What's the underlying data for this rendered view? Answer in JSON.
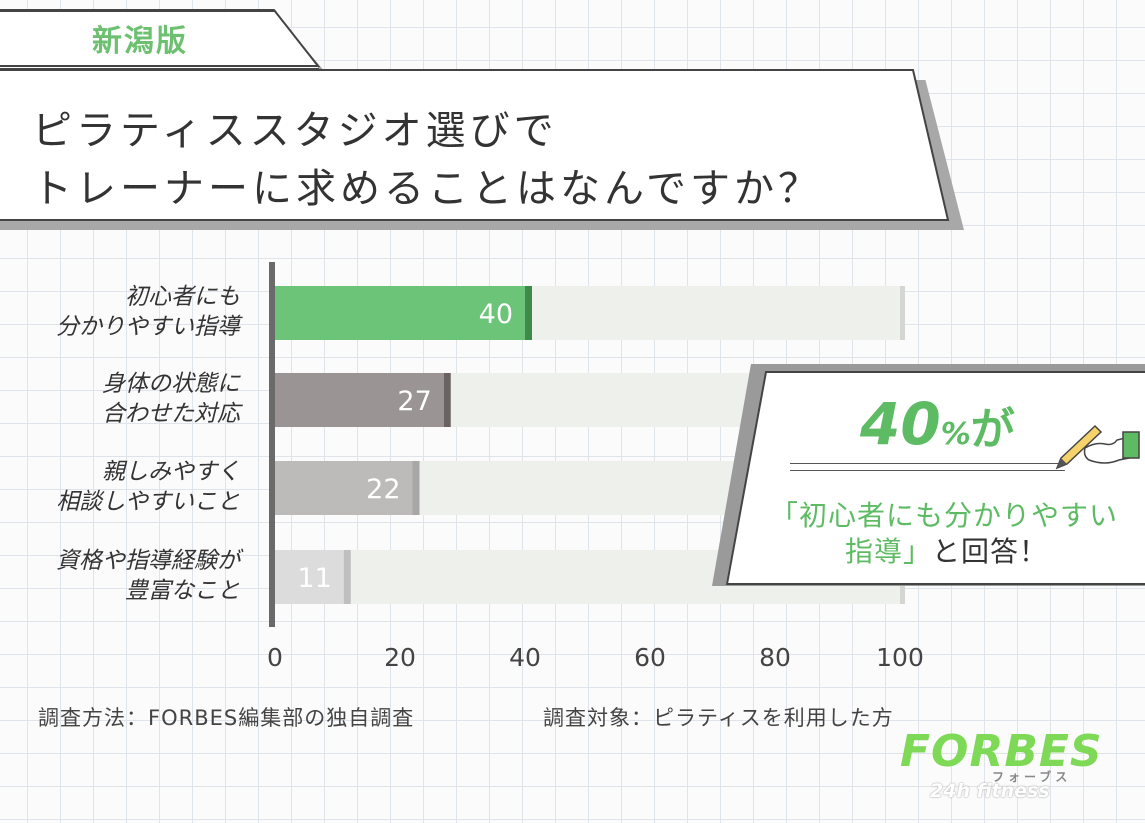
{
  "header": {
    "tag": "新潟版",
    "title_line1": "ピラティススタジオ選びで",
    "title_line2": "トレーナーに求めることはなんですか？"
  },
  "chart_data": {
    "type": "bar",
    "orientation": "horizontal",
    "categories": [
      [
        "初心者にも",
        "分かりやすい指導"
      ],
      [
        "身体の状態に",
        "合わせた対応"
      ],
      [
        "親しみやすく",
        "相談しやすいこと"
      ],
      [
        "資格や指導経験が",
        "豊富なこと"
      ]
    ],
    "values": [
      40,
      27,
      22,
      11
    ],
    "value_labels": [
      "40",
      "27",
      "22",
      "11"
    ],
    "xlim": [
      0,
      100
    ],
    "xticks": [
      "0",
      "20",
      "40",
      "60",
      "80",
      "100"
    ],
    "bar_colors": [
      "#6cc478",
      "#9b9494",
      "#bdbaba",
      "#dcdcdc"
    ],
    "bar_edge_colors": [
      "#3f8a4a",
      "#6b6363",
      "#a8a6a6",
      "#bfbfbf"
    ],
    "track_color": "#eef0ec",
    "grid": true
  },
  "notes": {
    "method": "調査方法：FORBES編集部の独自調査",
    "target": "調査対象：ピラティスを利用した方"
  },
  "callout": {
    "number": "40",
    "percent": "%",
    "suffix": "が",
    "line1": "「初心者にも分かりやすい",
    "line2_green": "指導」",
    "line2_dark": "と回答！",
    "accent": "#5dbb63"
  },
  "logo": {
    "main": "FORBES",
    "kana": "フォーブス",
    "sub": "24h fitness",
    "color": "#7ed957"
  }
}
